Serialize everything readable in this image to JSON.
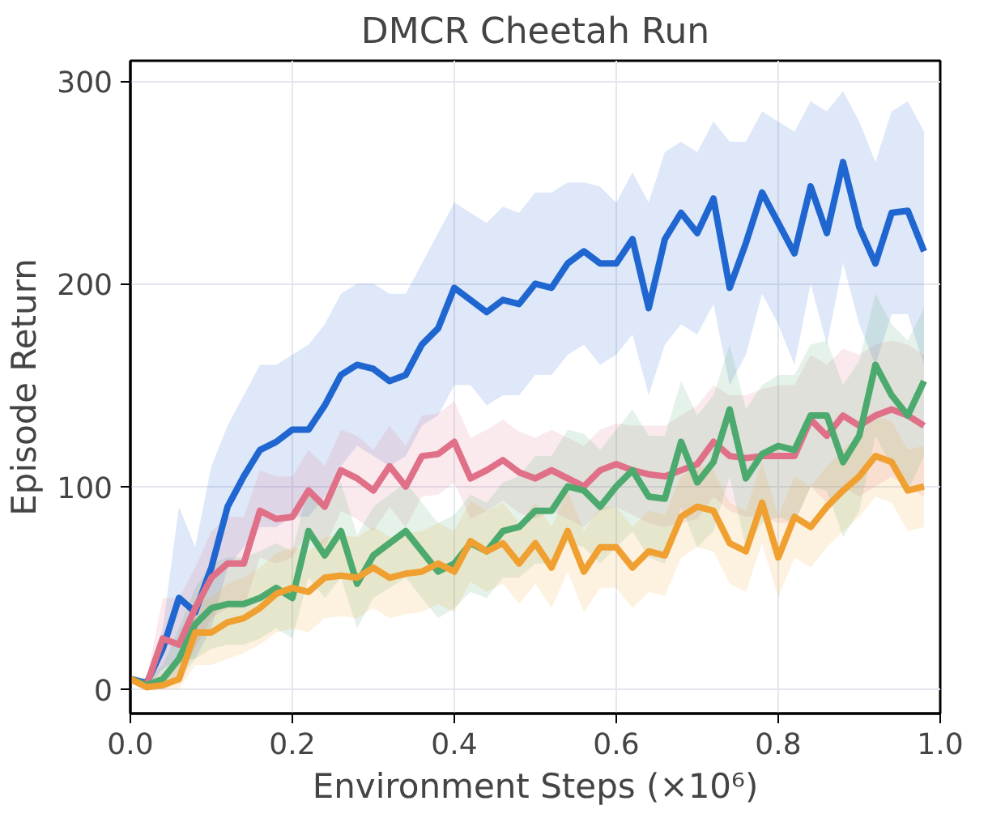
{
  "chart_data": {
    "type": "line",
    "title": "DMCR Cheetah Run",
    "xlabel": "Environment Steps (×10⁶)",
    "ylabel": "Episode Return",
    "x": [
      0,
      0.02,
      0.04,
      0.06,
      0.08,
      0.1,
      0.12,
      0.14,
      0.16,
      0.18,
      0.2,
      0.22,
      0.24,
      0.26,
      0.28,
      0.3,
      0.32,
      0.34,
      0.36,
      0.38,
      0.4,
      0.42,
      0.44,
      0.46,
      0.48,
      0.5,
      0.52,
      0.54,
      0.56,
      0.58,
      0.6,
      0.62,
      0.64,
      0.66,
      0.68,
      0.7,
      0.72,
      0.74,
      0.76,
      0.78,
      0.8,
      0.82,
      0.84,
      0.86,
      0.88,
      0.9,
      0.92,
      0.94,
      0.96,
      0.98
    ],
    "series": [
      {
        "color": "#1f66d0",
        "values": [
          5,
          3,
          20,
          45,
          38,
          60,
          90,
          105,
          118,
          122,
          128,
          128,
          140,
          155,
          160,
          158,
          152,
          155,
          170,
          178,
          198,
          192,
          186,
          192,
          190,
          200,
          198,
          210,
          216,
          210,
          210,
          222,
          188,
          222,
          235,
          225,
          242,
          198,
          220,
          245,
          230,
          215,
          248,
          225,
          260,
          228,
          210,
          235,
          236,
          216
        ],
        "upper": [
          6,
          5,
          30,
          90,
          70,
          110,
          130,
          145,
          160,
          160,
          165,
          170,
          180,
          195,
          200,
          200,
          195,
          195,
          210,
          225,
          240,
          235,
          230,
          238,
          235,
          245,
          245,
          250,
          250,
          248,
          240,
          255,
          240,
          265,
          270,
          265,
          280,
          270,
          270,
          285,
          280,
          275,
          290,
          285,
          295,
          280,
          260,
          285,
          290,
          275
        ],
        "lower": [
          4,
          1,
          10,
          15,
          15,
          30,
          60,
          70,
          80,
          80,
          85,
          85,
          95,
          110,
          120,
          115,
          110,
          115,
          130,
          135,
          150,
          150,
          140,
          145,
          145,
          155,
          155,
          165,
          170,
          160,
          165,
          175,
          145,
          170,
          180,
          175,
          190,
          150,
          165,
          195,
          180,
          160,
          200,
          170,
          210,
          180,
          160,
          185,
          185,
          160
        ]
      },
      {
        "color": "#e07088",
        "values": [
          5,
          2,
          25,
          22,
          40,
          55,
          62,
          62,
          88,
          84,
          85,
          98,
          90,
          108,
          104,
          98,
          110,
          100,
          115,
          116,
          122,
          104,
          108,
          113,
          107,
          104,
          108,
          104,
          100,
          108,
          111,
          108,
          106,
          105,
          108,
          111,
          122,
          115,
          114,
          115,
          115,
          115,
          133,
          125,
          135,
          130,
          135,
          138,
          135,
          130
        ],
        "upper": [
          7,
          5,
          45,
          45,
          60,
          78,
          85,
          85,
          108,
          105,
          105,
          118,
          110,
          128,
          125,
          118,
          130,
          120,
          135,
          136,
          142,
          124,
          128,
          133,
          127,
          124,
          128,
          124,
          120,
          128,
          131,
          130,
          130,
          130,
          135,
          140,
          150,
          145,
          145,
          148,
          150,
          150,
          165,
          160,
          168,
          165,
          170,
          172,
          170,
          165
        ],
        "lower": [
          3,
          0,
          5,
          5,
          20,
          35,
          40,
          40,
          65,
          62,
          65,
          78,
          70,
          88,
          84,
          78,
          90,
          80,
          95,
          96,
          102,
          84,
          88,
          93,
          87,
          84,
          88,
          84,
          80,
          88,
          90,
          86,
          82,
          80,
          82,
          84,
          95,
          88,
          85,
          85,
          82,
          82,
          100,
          92,
          100,
          95,
          100,
          105,
          100,
          95
        ]
      },
      {
        "color": "#4caa6e",
        "values": [
          5,
          2,
          5,
          15,
          32,
          40,
          42,
          42,
          45,
          50,
          45,
          78,
          66,
          78,
          52,
          66,
          72,
          78,
          68,
          58,
          62,
          72,
          68,
          78,
          80,
          88,
          88,
          100,
          98,
          90,
          100,
          108,
          95,
          94,
          122,
          102,
          112,
          138,
          104,
          116,
          120,
          118,
          135,
          135,
          112,
          125,
          160,
          145,
          135,
          152
        ],
        "upper": [
          7,
          5,
          12,
          30,
          50,
          62,
          65,
          65,
          68,
          72,
          68,
          100,
          90,
          102,
          76,
          90,
          96,
          102,
          92,
          82,
          86,
          96,
          92,
          102,
          105,
          115,
          115,
          128,
          126,
          118,
          128,
          138,
          125,
          125,
          152,
          135,
          145,
          170,
          138,
          150,
          155,
          155,
          170,
          172,
          150,
          162,
          195,
          180,
          172,
          188
        ],
        "lower": [
          3,
          0,
          0,
          5,
          15,
          20,
          22,
          22,
          25,
          30,
          25,
          55,
          45,
          55,
          30,
          45,
          50,
          55,
          45,
          35,
          40,
          48,
          45,
          55,
          55,
          62,
          62,
          72,
          70,
          62,
          70,
          78,
          65,
          62,
          90,
          70,
          78,
          105,
          70,
          82,
          85,
          82,
          100,
          98,
          75,
          88,
          125,
          110,
          98,
          115
        ]
      },
      {
        "color": "#f0a030",
        "values": [
          5,
          1,
          2,
          5,
          28,
          28,
          33,
          35,
          40,
          47,
          50,
          48,
          55,
          56,
          55,
          60,
          55,
          57,
          58,
          62,
          58,
          73,
          68,
          72,
          62,
          72,
          60,
          78,
          58,
          70,
          70,
          60,
          68,
          66,
          85,
          90,
          88,
          72,
          68,
          92,
          65,
          85,
          80,
          90,
          98,
          105,
          115,
          112,
          98,
          100
        ],
        "upper": [
          7,
          3,
          8,
          15,
          45,
          45,
          52,
          55,
          60,
          67,
          70,
          68,
          75,
          76,
          75,
          80,
          75,
          77,
          78,
          82,
          78,
          93,
          88,
          92,
          82,
          92,
          80,
          98,
          78,
          90,
          90,
          80,
          88,
          86,
          105,
          110,
          108,
          92,
          88,
          112,
          85,
          105,
          100,
          110,
          118,
          125,
          135,
          132,
          118,
          120
        ],
        "lower": [
          3,
          0,
          0,
          0,
          12,
          12,
          15,
          18,
          22,
          28,
          30,
          28,
          35,
          36,
          35,
          40,
          35,
          37,
          38,
          42,
          38,
          53,
          48,
          52,
          42,
          52,
          40,
          58,
          38,
          50,
          50,
          40,
          48,
          46,
          65,
          70,
          68,
          52,
          48,
          72,
          45,
          65,
          60,
          70,
          78,
          85,
          95,
          92,
          78,
          80
        ]
      }
    ],
    "xlim": [
      0,
      1
    ],
    "ylim": [
      -12,
      310
    ],
    "xticks": [
      {
        "value": 0,
        "label": "0.0"
      },
      {
        "value": 0.2,
        "label": "0.2"
      },
      {
        "value": 0.4,
        "label": "0.4"
      },
      {
        "value": 0.6,
        "label": "0.6"
      },
      {
        "value": 0.8,
        "label": "0.8"
      },
      {
        "value": 1,
        "label": "1.0"
      }
    ],
    "yticks": [
      0,
      100,
      200,
      300
    ],
    "grid": true,
    "line_style": "solid",
    "marker": "none"
  }
}
